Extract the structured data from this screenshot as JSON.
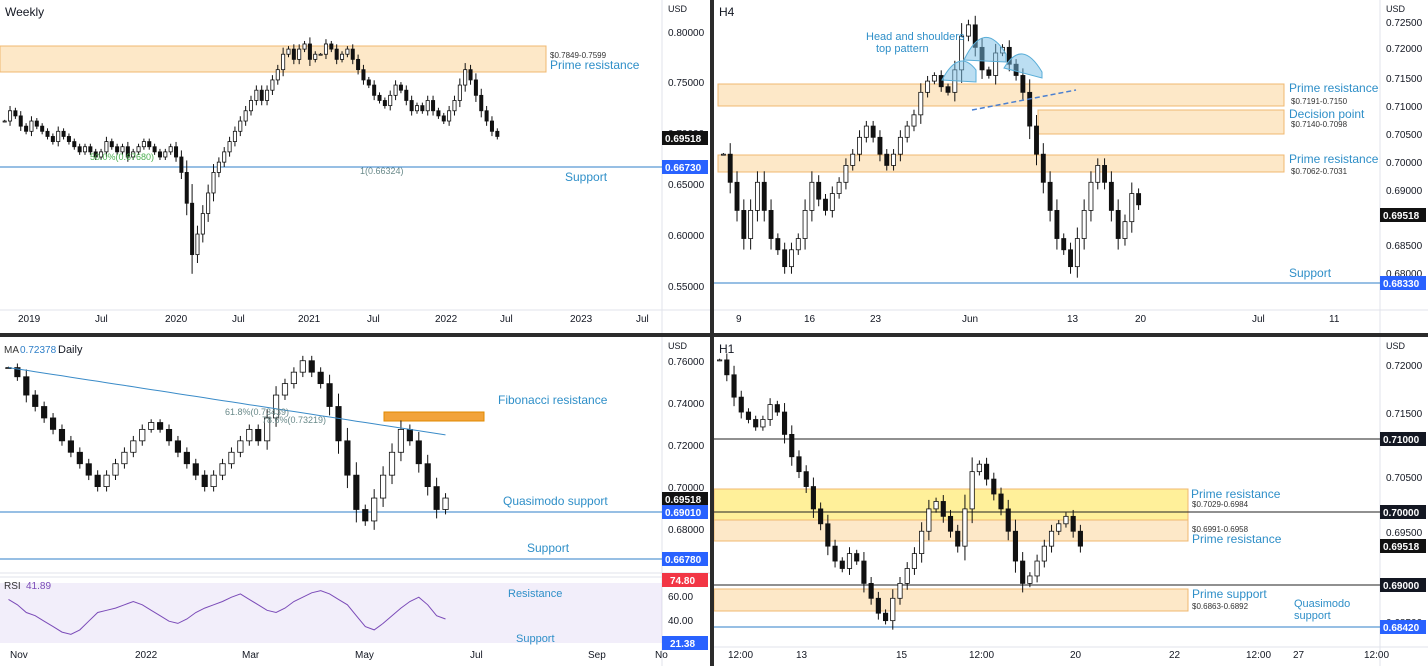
{
  "chart_data": [
    {
      "type": "candlestick",
      "timeframe": "Weekly",
      "currency": "USD",
      "price_ticks": [
        "0.80000",
        "0.75000",
        "0.70000",
        "0.65000",
        "0.60000",
        "0.55000"
      ],
      "time_ticks": [
        "2019",
        "Jul",
        "2020",
        "Jul",
        "2021",
        "Jul",
        "2022",
        "Jul",
        "2023",
        "Jul"
      ],
      "last_price": "0.69518",
      "price_labels": [
        {
          "text": "0.66730",
          "color": "#2962ff"
        }
      ],
      "zones": [
        {
          "label": "Prime resistance",
          "range": "$0.7849-0.7599",
          "low": 0.7599,
          "high": 0.7849
        }
      ],
      "lines": [
        {
          "label": "Support",
          "value": 0.6673
        }
      ],
      "fib_labels": [
        "50.0%(0.67680)",
        "1(0.66324)"
      ],
      "price_range": [
        0.53,
        0.82
      ],
      "series": [
        0.71,
        0.72,
        0.715,
        0.705,
        0.7,
        0.71,
        0.705,
        0.7,
        0.695,
        0.69,
        0.7,
        0.695,
        0.69,
        0.685,
        0.68,
        0.685,
        0.68,
        0.675,
        0.68,
        0.69,
        0.685,
        0.68,
        0.685,
        0.675,
        0.68,
        0.685,
        0.69,
        0.685,
        0.68,
        0.675,
        0.68,
        0.685,
        0.675,
        0.66,
        0.63,
        0.58,
        0.6,
        0.62,
        0.64,
        0.66,
        0.67,
        0.68,
        0.69,
        0.7,
        0.71,
        0.72,
        0.73,
        0.74,
        0.73,
        0.74,
        0.75,
        0.76,
        0.775,
        0.78,
        0.77,
        0.78,
        0.785,
        0.77,
        0.775,
        0.775,
        0.785,
        0.78,
        0.77,
        0.775,
        0.78,
        0.77,
        0.76,
        0.75,
        0.745,
        0.735,
        0.73,
        0.725,
        0.735,
        0.745,
        0.74,
        0.73,
        0.72,
        0.725,
        0.72,
        0.73,
        0.72,
        0.715,
        0.71,
        0.72,
        0.73,
        0.745,
        0.76,
        0.75,
        0.735,
        0.72,
        0.71,
        0.7,
        0.695
      ]
    },
    {
      "type": "candlestick",
      "timeframe": "H4",
      "currency": "USD",
      "price_ticks": [
        "0.72500",
        "0.72000",
        "0.71500",
        "0.71000",
        "0.70500",
        "0.70000",
        "0.69000",
        "0.68500",
        "0.68000"
      ],
      "time_ticks": [
        "9",
        "16",
        "23",
        "Jun",
        "13",
        "20",
        "Jul",
        "11"
      ],
      "last_price": "0.69518",
      "price_labels": [
        {
          "text": "0.68330",
          "color": "#2962ff"
        }
      ],
      "annotation": "Head and shoulders top pattern",
      "zones": [
        {
          "label": "Prime resistance",
          "range": "$0.7191-0.7150",
          "low": 0.715,
          "high": 0.7191
        },
        {
          "label": "Decision point",
          "range": "$0.7140-0.7098",
          "low": 0.7098,
          "high": 0.714
        },
        {
          "label": "Prime resistance",
          "range": "$0.7062-0.7031",
          "low": 0.7031,
          "high": 0.7062
        }
      ],
      "lines": [
        {
          "label": "Support",
          "value": 0.6833
        }
      ],
      "price_range": [
        0.678,
        0.731
      ],
      "series": [
        0.705,
        0.7,
        0.695,
        0.69,
        0.695,
        0.7,
        0.695,
        0.69,
        0.688,
        0.685,
        0.688,
        0.69,
        0.695,
        0.7,
        0.697,
        0.695,
        0.698,
        0.7,
        0.703,
        0.705,
        0.708,
        0.71,
        0.708,
        0.705,
        0.703,
        0.705,
        0.708,
        0.71,
        0.712,
        0.716,
        0.718,
        0.719,
        0.717,
        0.716,
        0.72,
        0.726,
        0.728,
        0.724,
        0.72,
        0.719,
        0.723,
        0.724,
        0.721,
        0.719,
        0.716,
        0.71,
        0.705,
        0.7,
        0.695,
        0.69,
        0.688,
        0.685,
        0.69,
        0.695,
        0.7,
        0.703,
        0.7,
        0.695,
        0.69,
        0.693,
        0.698,
        0.696
      ]
    },
    {
      "type": "candlestick",
      "timeframe": "Daily",
      "currency": "USD",
      "price_ticks": [
        "0.76000",
        "0.74000",
        "0.72000",
        "0.70000",
        "0.68000"
      ],
      "time_ticks": [
        "Nov",
        "2022",
        "Mar",
        "May",
        "Jul",
        "Sep",
        "No"
      ],
      "last_price": "0.69518",
      "price_labels": [
        {
          "text": "0.69010",
          "color": "#2962ff"
        },
        {
          "text": "0.66780",
          "color": "#2962ff"
        }
      ],
      "ma_label": "MA",
      "ma_value": "0.72378",
      "zones": [
        {
          "label": "Fibonacci resistance"
        }
      ],
      "lines": [
        {
          "label": "Quasimodo support",
          "value": 0.6901
        },
        {
          "label": "Support",
          "value": 0.6678
        }
      ],
      "fib_labels": [
        "61.8%(0.73439)",
        "78.6%(0.73219)"
      ],
      "price_range": [
        0.664,
        0.761
      ],
      "series": [
        0.752,
        0.748,
        0.74,
        0.735,
        0.73,
        0.725,
        0.72,
        0.715,
        0.71,
        0.705,
        0.7,
        0.705,
        0.71,
        0.715,
        0.72,
        0.725,
        0.728,
        0.725,
        0.72,
        0.715,
        0.71,
        0.705,
        0.7,
        0.705,
        0.71,
        0.715,
        0.72,
        0.725,
        0.72,
        0.73,
        0.74,
        0.745,
        0.75,
        0.755,
        0.75,
        0.745,
        0.735,
        0.72,
        0.705,
        0.69,
        0.685,
        0.695,
        0.705,
        0.715,
        0.725,
        0.72,
        0.71,
        0.7,
        0.69,
        0.695
      ],
      "rsi": {
        "label": "RSI",
        "value": "41.89",
        "ticks": [
          "60.00",
          "40.00"
        ],
        "upper": "74.80",
        "lower": "21.38",
        "zones": [
          "Resistance",
          "Support"
        ],
        "series": [
          60,
          55,
          48,
          45,
          40,
          35,
          30,
          28,
          32,
          40,
          48,
          50,
          52,
          55,
          58,
          55,
          50,
          45,
          40,
          38,
          42,
          48,
          52,
          55,
          58,
          62,
          65,
          60,
          55,
          50,
          48,
          52,
          58,
          62,
          66,
          68,
          65,
          60,
          55,
          45,
          35,
          32,
          38,
          45,
          52,
          58,
          62,
          55,
          45,
          42
        ]
      }
    },
    {
      "type": "candlestick",
      "timeframe": "H1",
      "currency": "USD",
      "price_ticks": [
        "0.72000",
        "0.71500",
        "0.70500",
        "0.69500",
        "0.68500"
      ],
      "time_ticks": [
        "12:00",
        "13",
        "15",
        "12:00",
        "20",
        "22",
        "12:00",
        "27",
        "12:00"
      ],
      "last_price": "0.69518",
      "price_labels": [
        {
          "text": "0.71000",
          "color": "#131722"
        },
        {
          "text": "0.70000",
          "color": "#131722"
        },
        {
          "text": "0.69000",
          "color": "#131722"
        },
        {
          "text": "0.68420",
          "color": "#2962ff"
        }
      ],
      "zones": [
        {
          "label": "Prime resistance",
          "range": "$0.7029-0.6984",
          "low": 0.6984,
          "high": 0.7029
        },
        {
          "label": "Prime resistance",
          "range": "$0.6991-0.6958",
          "low": 0.6958,
          "high": 0.6991
        },
        {
          "label": "Prime support",
          "range": "$0.6863-0.6892",
          "low": 0.6863,
          "high": 0.6892
        }
      ],
      "lines": [
        {
          "label": "",
          "value": 0.71
        },
        {
          "label": "",
          "value": 0.7
        },
        {
          "label": "",
          "value": 0.69
        },
        {
          "label": "Quasimodo support",
          "value": 0.6842
        }
      ],
      "price_range": [
        0.682,
        0.722
      ],
      "series": [
        0.72,
        0.718,
        0.715,
        0.713,
        0.712,
        0.711,
        0.712,
        0.714,
        0.713,
        0.71,
        0.707,
        0.705,
        0.703,
        0.7,
        0.698,
        0.695,
        0.693,
        0.692,
        0.694,
        0.693,
        0.69,
        0.688,
        0.686,
        0.685,
        0.688,
        0.69,
        0.692,
        0.694,
        0.697,
        0.7,
        0.701,
        0.699,
        0.697,
        0.695,
        0.7,
        0.705,
        0.706,
        0.704,
        0.702,
        0.7,
        0.697,
        0.693,
        0.69,
        0.691,
        0.693,
        0.695,
        0.697,
        0.698,
        0.699,
        0.697,
        0.695
      ]
    }
  ]
}
